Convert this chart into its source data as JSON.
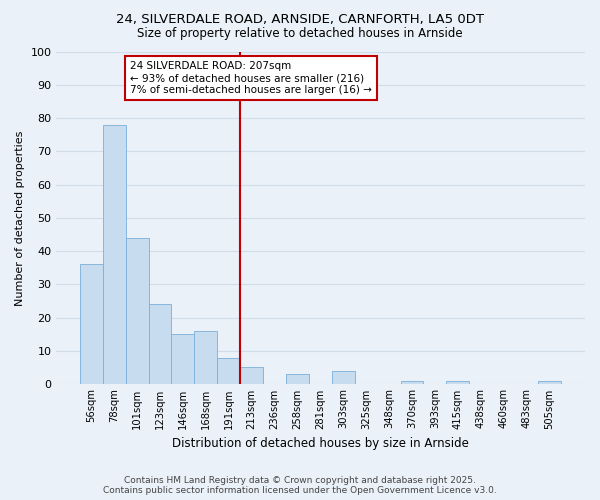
{
  "title_line1": "24, SILVERDALE ROAD, ARNSIDE, CARNFORTH, LA5 0DT",
  "title_line2": "Size of property relative to detached houses in Arnside",
  "xlabel": "Distribution of detached houses by size in Arnside",
  "ylabel": "Number of detached properties",
  "categories": [
    "56sqm",
    "78sqm",
    "101sqm",
    "123sqm",
    "146sqm",
    "168sqm",
    "191sqm",
    "213sqm",
    "236sqm",
    "258sqm",
    "281sqm",
    "303sqm",
    "325sqm",
    "348sqm",
    "370sqm",
    "393sqm",
    "415sqm",
    "438sqm",
    "460sqm",
    "483sqm",
    "505sqm"
  ],
  "values": [
    36,
    78,
    44,
    24,
    15,
    16,
    8,
    5,
    0,
    3,
    0,
    4,
    0,
    0,
    1,
    0,
    1,
    0,
    0,
    0,
    1
  ],
  "bar_color": "#c8dcf0",
  "bar_edge_color": "#7ab0d8",
  "property_line_index": 7,
  "annotation_text": "24 SILVERDALE ROAD: 207sqm\n← 93% of detached houses are smaller (216)\n7% of semi-detached houses are larger (16) →",
  "annotation_box_color": "#ffffff",
  "annotation_box_edge_color": "#c00000",
  "vline_color": "#c00000",
  "background_color": "#eaf1f8",
  "grid_color": "#d0dde8",
  "ylim": [
    0,
    100
  ],
  "yticks": [
    0,
    10,
    20,
    30,
    40,
    50,
    60,
    70,
    80,
    90,
    100
  ],
  "footer_line1": "Contains HM Land Registry data © Crown copyright and database right 2025.",
  "footer_line2": "Contains public sector information licensed under the Open Government Licence v3.0."
}
